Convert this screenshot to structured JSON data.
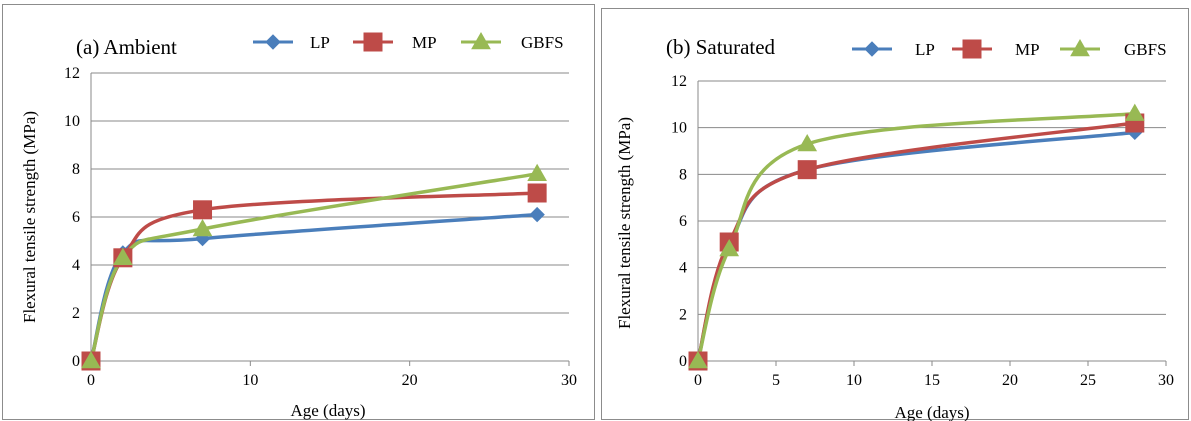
{
  "chart_data": [
    {
      "type": "line",
      "title": "(a) Ambient",
      "xlabel": "Age (days)",
      "ylabel": "Flexural tensile strength (MPa)",
      "xlim": [
        0,
        30
      ],
      "ylim": [
        0,
        12
      ],
      "xticks": [
        0,
        10,
        20,
        30
      ],
      "yticks": [
        0,
        2,
        4,
        6,
        8,
        10,
        12
      ],
      "grid": "horizontal",
      "legend_position": "top",
      "smooth": true,
      "series": [
        {
          "name": "LP",
          "color": "#4a7ebb",
          "marker": "diamond",
          "x": [
            0,
            2,
            7,
            28
          ],
          "y": [
            0,
            4.5,
            5.1,
            6.1
          ]
        },
        {
          "name": "MP",
          "color": "#be4b48",
          "marker": "square",
          "x": [
            0,
            2,
            7,
            28
          ],
          "y": [
            0,
            4.3,
            6.3,
            7.0
          ]
        },
        {
          "name": "GBFS",
          "color": "#98b954",
          "marker": "triangle",
          "x": [
            0,
            2,
            7,
            28
          ],
          "y": [
            0,
            4.3,
            5.5,
            7.8
          ]
        }
      ]
    },
    {
      "type": "line",
      "title": "(b) Saturated",
      "xlabel": "Age (days)",
      "ylabel": "Flexural tensile strength (MPa)",
      "xlim": [
        0,
        30
      ],
      "ylim": [
        0,
        12
      ],
      "xticks": [
        0,
        5,
        10,
        15,
        20,
        25,
        30
      ],
      "yticks": [
        0,
        2,
        4,
        6,
        8,
        10,
        12
      ],
      "grid": "horizontal",
      "legend_position": "top",
      "smooth": true,
      "series": [
        {
          "name": "LP",
          "color": "#4a7ebb",
          "marker": "diamond",
          "x": [
            0,
            2,
            7,
            28
          ],
          "y": [
            0,
            5.0,
            8.2,
            9.8
          ]
        },
        {
          "name": "MP",
          "color": "#be4b48",
          "marker": "square",
          "x": [
            0,
            2,
            7,
            28
          ],
          "y": [
            0,
            5.1,
            8.2,
            10.2
          ]
        },
        {
          "name": "GBFS",
          "color": "#98b954",
          "marker": "triangle",
          "x": [
            0,
            2,
            7,
            28
          ],
          "y": [
            0,
            4.8,
            9.3,
            10.6
          ]
        }
      ]
    }
  ]
}
